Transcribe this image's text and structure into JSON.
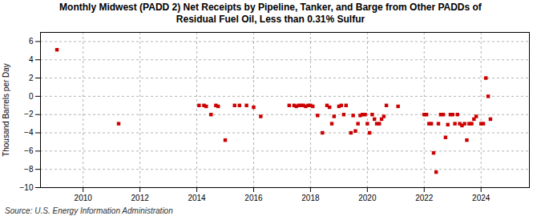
{
  "chart_data": {
    "type": "scatter",
    "title": "Monthly Midwest (PADD 2) Net Receipts by Pipeline, Tanker, and Barge from Other PADDs of\nResidual Fuel Oil, Less than 0.31% Sulfur",
    "ylabel": "Thousand Barrels per Day",
    "source": "Source: U.S. Energy Information Administration",
    "color": "#cc0000",
    "marker": "square",
    "grid": true,
    "xlim": [
      2008.5,
      2025.7
    ],
    "xticks": [
      2010,
      2012,
      2014,
      2016,
      2018,
      2020,
      2022,
      2024
    ],
    "ylim": [
      -10,
      7
    ],
    "yticks": [
      -10,
      -8,
      -6,
      -4,
      -2,
      0,
      2,
      4,
      6
    ],
    "x": [
      2009.08,
      2011.25,
      2014.08,
      2014.25,
      2014.33,
      2014.5,
      2014.67,
      2014.75,
      2015.0,
      2015.33,
      2015.5,
      2015.75,
      2016.0,
      2016.25,
      2017.25,
      2017.42,
      2017.5,
      2017.58,
      2017.67,
      2017.75,
      2017.83,
      2017.92,
      2018.0,
      2018.08,
      2018.25,
      2018.42,
      2018.58,
      2018.67,
      2018.75,
      2018.83,
      2019.0,
      2019.08,
      2019.17,
      2019.25,
      2019.42,
      2019.5,
      2019.58,
      2019.67,
      2019.75,
      2019.83,
      2019.92,
      2020.0,
      2020.08,
      2020.17,
      2020.25,
      2020.33,
      2020.42,
      2020.5,
      2020.58,
      2020.67,
      2021.08,
      2022.0,
      2022.08,
      2022.17,
      2022.25,
      2022.33,
      2022.42,
      2022.5,
      2022.58,
      2022.67,
      2022.75,
      2022.83,
      2022.92,
      2023.0,
      2023.08,
      2023.17,
      2023.25,
      2023.33,
      2023.42,
      2023.5,
      2023.58,
      2023.67,
      2023.75,
      2023.83,
      2024.0,
      2024.08,
      2024.17,
      2024.25,
      2024.33
    ],
    "values": [
      5.1,
      -3.0,
      -1.0,
      -1.0,
      -1.1,
      -2.0,
      -1.0,
      -1.1,
      -4.8,
      -1.0,
      -1.0,
      -1.0,
      -1.2,
      -2.2,
      -1.0,
      -1.0,
      -1.1,
      -1.0,
      -1.0,
      -1.0,
      -1.1,
      -1.0,
      -1.0,
      -1.1,
      -2.1,
      -4.0,
      -1.0,
      -1.2,
      -3.0,
      -2.2,
      -1.1,
      -1.0,
      -2.0,
      -1.0,
      -4.0,
      -2.1,
      -3.8,
      -3.0,
      -2.1,
      -2.0,
      -2.0,
      -3.0,
      -4.0,
      -2.0,
      -2.5,
      -3.0,
      -3.0,
      -2.5,
      -2.2,
      -1.0,
      -1.1,
      -2.0,
      -2.0,
      -3.0,
      -3.0,
      -6.2,
      -8.3,
      -3.0,
      -2.0,
      -2.0,
      -4.5,
      -3.1,
      -2.0,
      -2.0,
      -3.0,
      -2.0,
      -3.0,
      -3.2,
      -3.0,
      -4.8,
      -3.0,
      -3.0,
      -2.5,
      -2.2,
      -3.0,
      -3.0,
      2.0,
      0.0,
      -2.5
    ]
  }
}
